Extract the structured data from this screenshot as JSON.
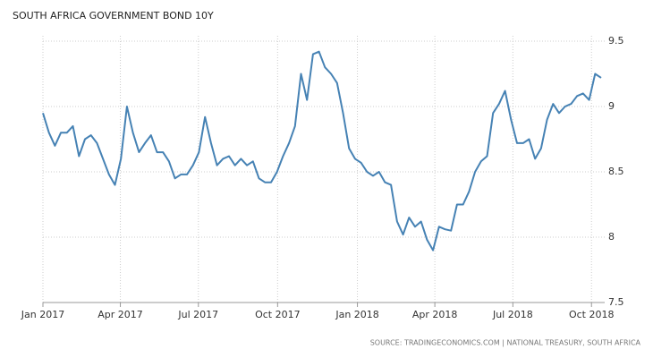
{
  "chart_data": {
    "type": "line",
    "title": "SOUTH AFRICA GOVERNMENT BOND 10Y",
    "source": "SOURCE: TRADINGECONOMICS.COM | NATIONAL TREASURY, SOUTH AFRICA",
    "x": [
      0,
      1,
      2,
      3,
      4,
      5,
      6,
      7,
      8,
      9,
      10,
      11,
      12,
      13,
      14,
      15,
      16,
      17,
      18,
      19,
      20,
      21,
      22,
      23,
      24,
      25,
      26,
      27,
      28,
      29,
      30,
      31,
      32,
      33,
      34,
      35,
      36,
      37,
      38,
      39,
      40,
      41,
      42,
      43,
      44,
      45,
      46,
      47,
      48,
      49,
      50,
      51,
      52,
      53,
      54,
      55,
      56,
      57,
      58,
      59,
      60,
      61,
      62,
      63,
      64,
      65,
      66,
      67,
      68,
      69,
      70,
      71,
      72,
      73,
      74,
      75,
      76,
      77,
      78,
      79,
      80,
      81,
      82,
      83,
      84,
      85,
      86,
      87,
      88,
      89,
      90,
      91,
      92,
      93
    ],
    "series": [
      {
        "name": "South Africa Government Bond 10Y",
        "color": "#4682b4",
        "values": [
          8.95,
          8.8,
          8.7,
          8.8,
          8.8,
          8.85,
          8.62,
          8.75,
          8.78,
          8.72,
          8.6,
          8.48,
          8.4,
          8.6,
          9.0,
          8.8,
          8.65,
          8.72,
          8.78,
          8.65,
          8.65,
          8.58,
          8.45,
          8.48,
          8.48,
          8.55,
          8.65,
          8.92,
          8.72,
          8.55,
          8.6,
          8.62,
          8.55,
          8.6,
          8.55,
          8.58,
          8.45,
          8.42,
          8.42,
          8.5,
          8.62,
          8.72,
          8.85,
          9.25,
          9.05,
          9.4,
          9.42,
          9.3,
          9.25,
          9.18,
          8.95,
          8.68,
          8.6,
          8.57,
          8.5,
          8.47,
          8.5,
          8.42,
          8.4,
          8.12,
          8.02,
          8.15,
          8.08,
          8.12,
          7.98,
          7.9,
          8.08,
          8.06,
          8.05,
          8.25,
          8.25,
          8.35,
          8.5,
          8.58,
          8.62,
          8.95,
          9.02,
          9.12,
          8.9,
          8.72,
          8.72,
          8.75,
          8.6,
          8.68,
          8.9,
          9.02,
          8.95,
          9.0,
          9.02,
          9.08,
          9.1,
          9.05,
          9.25,
          9.22
        ]
      }
    ],
    "xlim": [
      0,
      93.6
    ],
    "xticks": [
      {
        "value": 0,
        "label": "Jan 2017"
      },
      {
        "value": 12.9,
        "label": "Apr 2017"
      },
      {
        "value": 25.9,
        "label": "Jul 2017"
      },
      {
        "value": 39.1,
        "label": "Oct 2017"
      },
      {
        "value": 52.4,
        "label": "Jan 2018"
      },
      {
        "value": 65.3,
        "label": "Apr 2018"
      },
      {
        "value": 78.3,
        "label": "Jul 2018"
      },
      {
        "value": 91.4,
        "label": "Oct 2018"
      }
    ],
    "ylim": [
      7.5,
      9.5
    ],
    "yticks": [
      7.5,
      8,
      8.5,
      9,
      9.5
    ],
    "grid": true
  }
}
